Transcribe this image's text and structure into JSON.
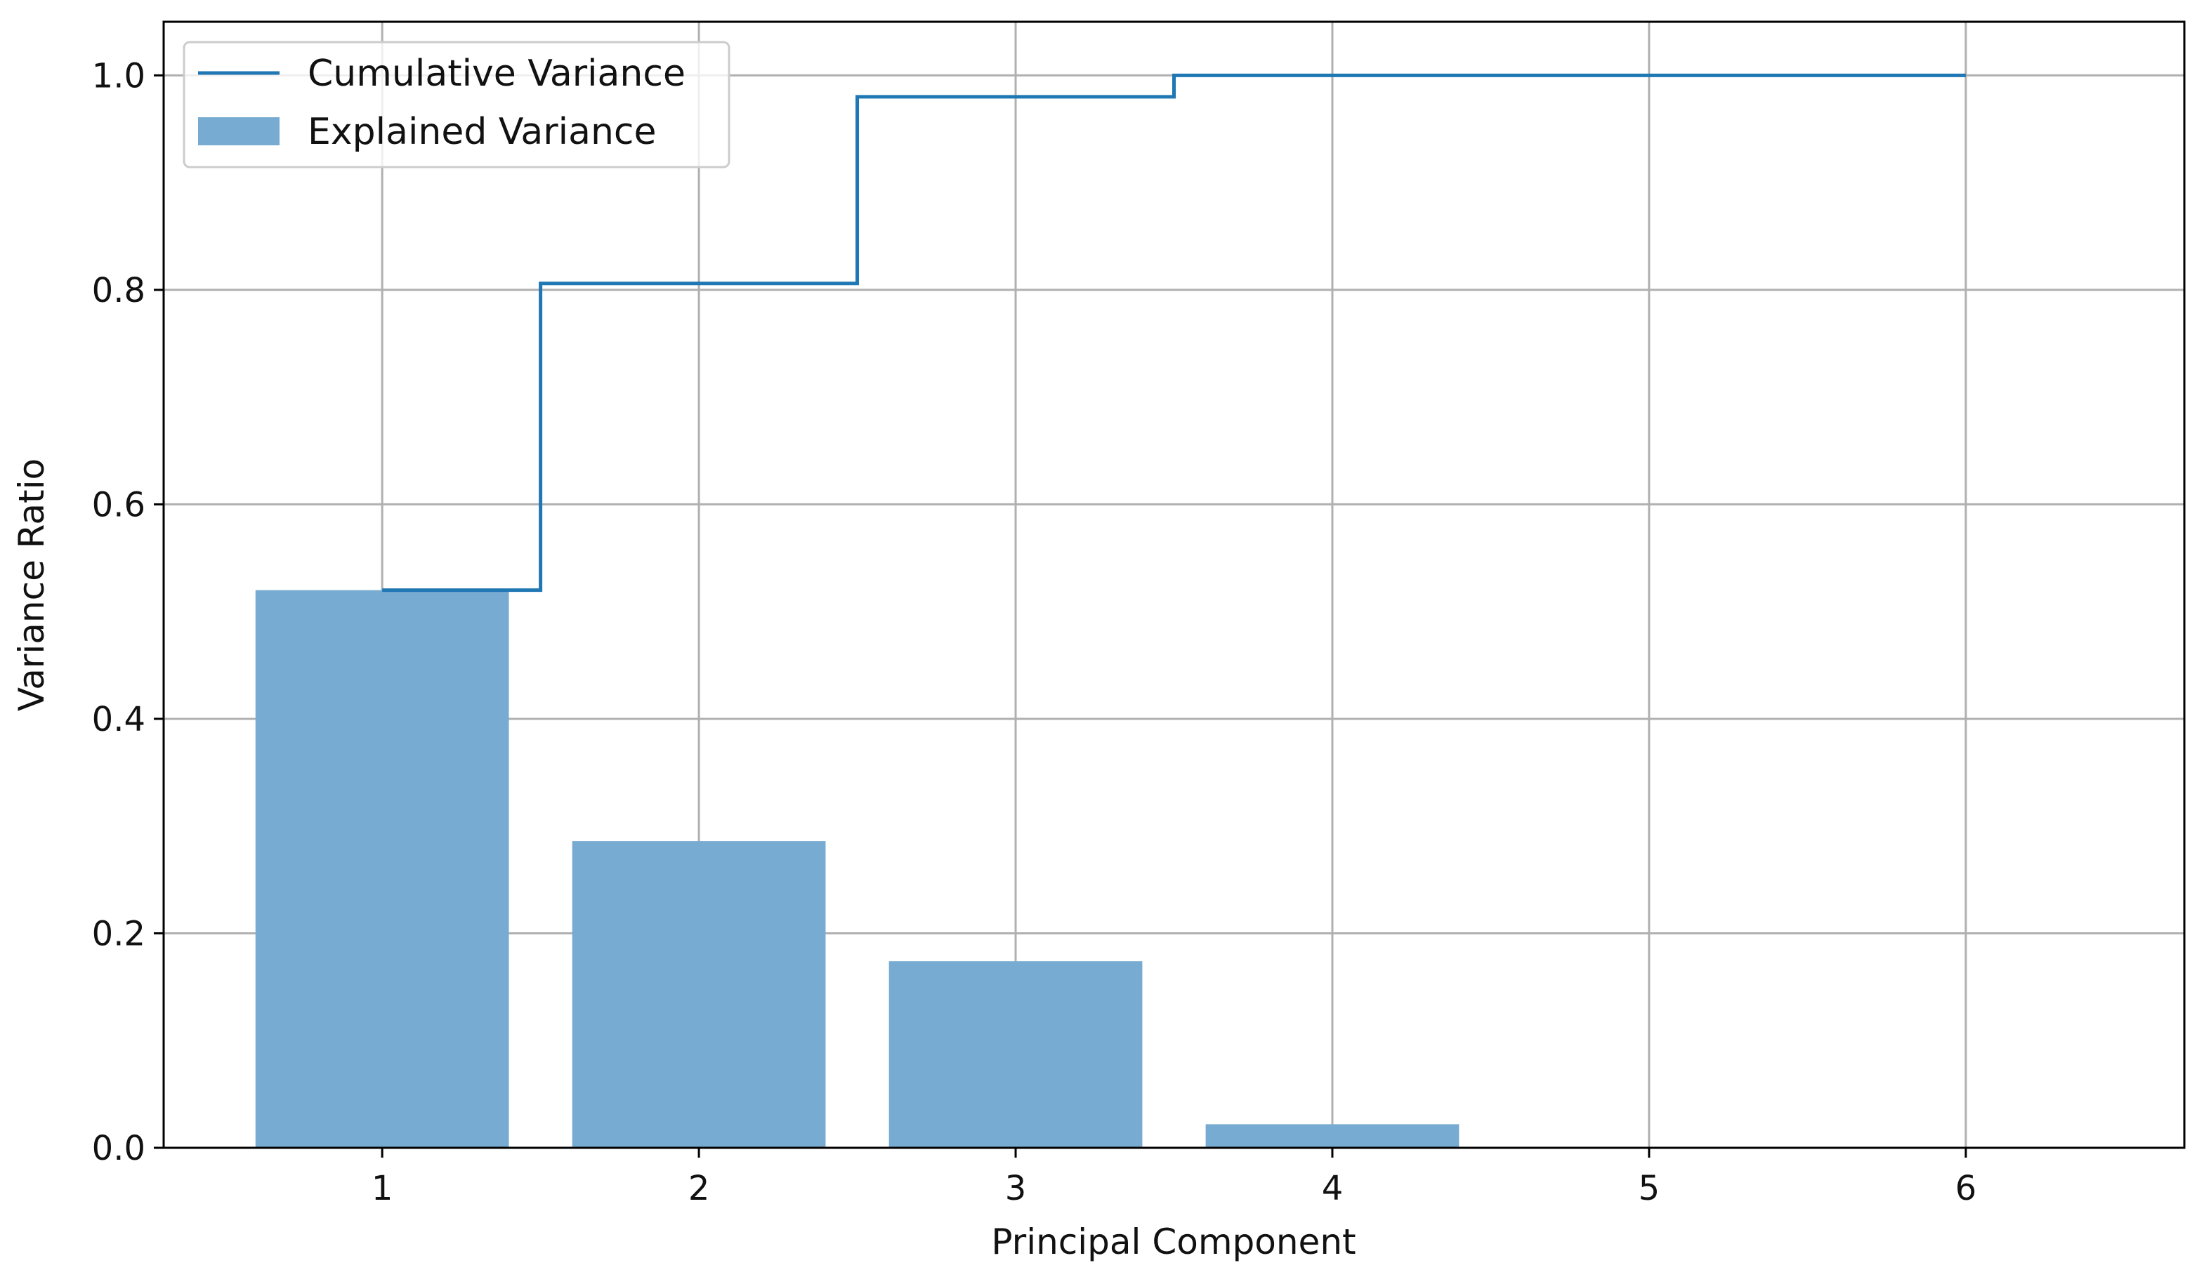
{
  "chart_data": {
    "type": "bar",
    "x": [
      1,
      2,
      3,
      4,
      5,
      6
    ],
    "xlabel": "Principal Component",
    "ylabel": "Variance Ratio",
    "xlim": [
      0.31,
      6.69
    ],
    "ylim": [
      0.0,
      1.05
    ],
    "xticks": [
      1,
      2,
      3,
      4,
      5,
      6
    ],
    "yticks": [
      0.0,
      0.2,
      0.4,
      0.6,
      0.8,
      1.0
    ],
    "xtick_labels": [
      "1",
      "2",
      "3",
      "4",
      "5",
      "6"
    ],
    "ytick_labels": [
      "0.0",
      "0.2",
      "0.4",
      "0.6",
      "0.8",
      "1.0"
    ],
    "grid": true,
    "legend_position": "top-left",
    "series": [
      {
        "name": "Cumulative Variance",
        "type": "step",
        "step_where": "mid",
        "color": "#1f77b4",
        "values": [
          0.52,
          0.806,
          0.98,
          1.0,
          1.0,
          1.0
        ]
      },
      {
        "name": "Explained Variance",
        "type": "bar",
        "color": "#77abd1",
        "values": [
          0.52,
          0.286,
          0.174,
          0.022,
          0.0,
          0.0
        ]
      }
    ]
  }
}
